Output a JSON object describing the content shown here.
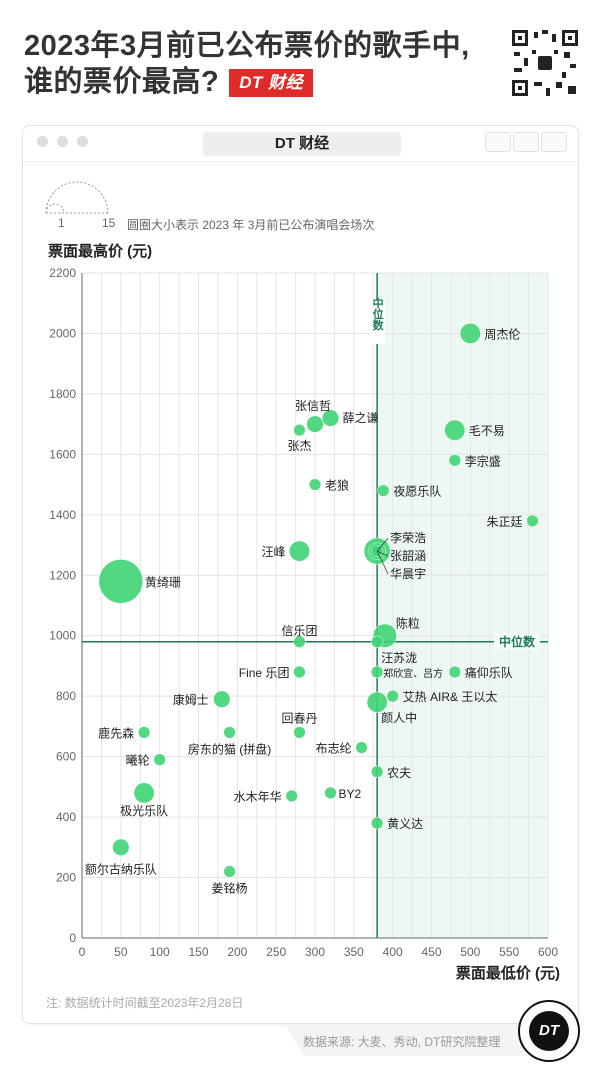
{
  "header": {
    "title_line1": "2023年3月前已公布票价的歌手中,",
    "title_line2": "谁的票价最高?",
    "brand_badge": "DT 财经"
  },
  "window": {
    "title": "DT 财经"
  },
  "legend": {
    "min_label": "1",
    "max_label": "15",
    "description": "圆圈大小表示 2023 年 3月前已公布演唱会场次"
  },
  "footer": {
    "note": "注: 数据统计时间截至2023年2月28日",
    "source": "数据来源: 大麦、秀动, DT研究院整理",
    "logo": "DT"
  },
  "colors": {
    "bubble": "#3fd474",
    "median_line": "#1f7a5a",
    "upper_region": "#eef8f3",
    "brand_red": "#e02b2b"
  },
  "chart_data": {
    "type": "scatter",
    "title": "2023年3月前已公布票价的歌手中,谁的票价最高?",
    "xlabel": "票面最低价 (元)",
    "ylabel": "票面最高价 (元)",
    "xlim": [
      0,
      600
    ],
    "ylim": [
      0,
      2200
    ],
    "xticks": [
      "0",
      "50",
      "100",
      "150",
      "200",
      "250",
      "300",
      "350",
      "400",
      "450",
      "500",
      "550",
      "600"
    ],
    "yticks": [
      "0",
      "200",
      "400",
      "600",
      "800",
      "1000",
      "1200",
      "1400",
      "1600",
      "1800",
      "2000",
      "2200"
    ],
    "grid": true,
    "size_meaning": "演唱会场次",
    "median": {
      "x": 380,
      "y": 980,
      "x_label": "中位数",
      "y_label": "中位数"
    },
    "points": [
      {
        "name": "周杰伦",
        "x": 500,
        "y": 2000,
        "shows": 3
      },
      {
        "name": "毛不易",
        "x": 480,
        "y": 1680,
        "shows": 3
      },
      {
        "name": "李宗盛",
        "x": 480,
        "y": 1580,
        "shows": 1
      },
      {
        "name": "朱正廷",
        "x": 580,
        "y": 1380,
        "shows": 1
      },
      {
        "name": "张信哲",
        "x": 300,
        "y": 1700,
        "shows": 2
      },
      {
        "name": "薛之谦",
        "x": 320,
        "y": 1720,
        "shows": 2
      },
      {
        "name": "张杰",
        "x": 280,
        "y": 1680,
        "shows": 1
      },
      {
        "name": "老狼",
        "x": 300,
        "y": 1500,
        "shows": 1
      },
      {
        "name": "夜愿乐队",
        "x": 388,
        "y": 1480,
        "shows": 1
      },
      {
        "name": "汪峰",
        "x": 280,
        "y": 1280,
        "shows": 3
      },
      {
        "name": "李荣浩",
        "x": 380,
        "y": 1280,
        "shows": 5
      },
      {
        "name": "张韶涵",
        "x": 380,
        "y": 1280,
        "shows": 2
      },
      {
        "name": "华晨宇",
        "x": 380,
        "y": 1280,
        "shows": 1
      },
      {
        "name": "黄绮珊",
        "x": 50,
        "y": 1180,
        "shows": 14
      },
      {
        "name": "陈粒",
        "x": 390,
        "y": 1000,
        "shows": 4
      },
      {
        "name": "信乐团",
        "x": 280,
        "y": 980,
        "shows": 1
      },
      {
        "name": "汪苏泷",
        "x": 380,
        "y": 980,
        "shows": 1
      },
      {
        "name": "Fine 乐团",
        "x": 280,
        "y": 880,
        "shows": 1
      },
      {
        "name": "郑欣宜、吕方",
        "x": 380,
        "y": 880,
        "shows": 1
      },
      {
        "name": "痛仰乐队",
        "x": 480,
        "y": 880,
        "shows": 1
      },
      {
        "name": "康姆士",
        "x": 180,
        "y": 790,
        "shows": 2
      },
      {
        "name": "艾热 AIR& 王以太",
        "x": 400,
        "y": 800,
        "shows": 1
      },
      {
        "name": "颜人中",
        "x": 380,
        "y": 780,
        "shows": 3
      },
      {
        "name": "鹿先森",
        "x": 80,
        "y": 680,
        "shows": 1
      },
      {
        "name": "房东的猫 (拼盘)",
        "x": 190,
        "y": 680,
        "shows": 1
      },
      {
        "name": "回春丹",
        "x": 280,
        "y": 680,
        "shows": 1
      },
      {
        "name": "曦轮",
        "x": 100,
        "y": 590,
        "shows": 1
      },
      {
        "name": "布志纶",
        "x": 360,
        "y": 630,
        "shows": 1
      },
      {
        "name": "农夫",
        "x": 380,
        "y": 550,
        "shows": 1
      },
      {
        "name": "极光乐队",
        "x": 80,
        "y": 480,
        "shows": 3
      },
      {
        "name": "水木年华",
        "x": 270,
        "y": 470,
        "shows": 1
      },
      {
        "name": "BY2",
        "x": 320,
        "y": 480,
        "shows": 1
      },
      {
        "name": "黄义达",
        "x": 380,
        "y": 380,
        "shows": 1
      },
      {
        "name": "额尔古纳乐队",
        "x": 50,
        "y": 300,
        "shows": 2
      },
      {
        "name": "姜铭杨",
        "x": 190,
        "y": 220,
        "shows": 1
      }
    ]
  }
}
